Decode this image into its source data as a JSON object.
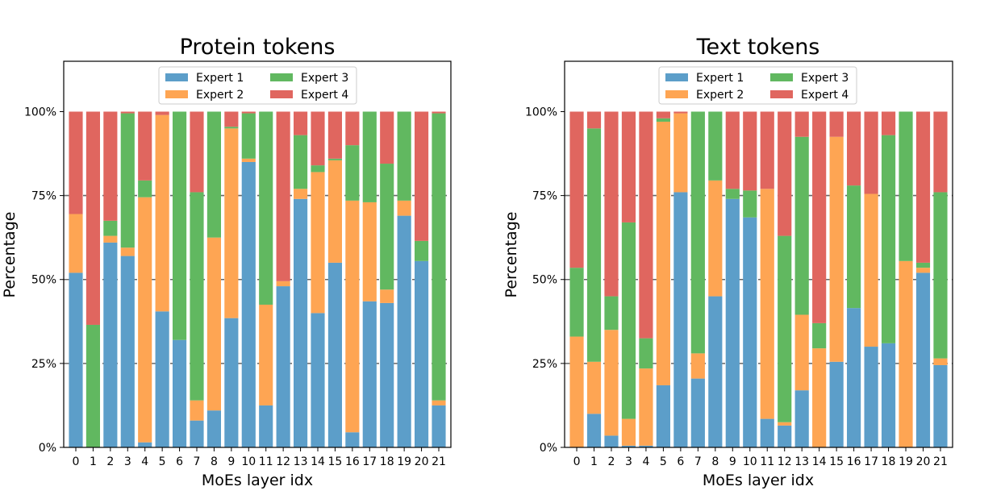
{
  "colors": {
    "expert1": "#5c9ec9",
    "expert2": "#fea553",
    "expert3": "#61b860",
    "expert4": "#e0665f"
  },
  "chart_data": [
    {
      "type": "bar",
      "stacked": true,
      "title": "Protein tokens",
      "xlabel": "MoEs layer idx",
      "ylabel": "Percentage",
      "ylim": [
        0,
        115
      ],
      "yticks": [
        "0%",
        "25%",
        "50%",
        "75%",
        "100%"
      ],
      "ytick_values": [
        0,
        25,
        50,
        75,
        100
      ],
      "gridlines": [
        25,
        50,
        75
      ],
      "legend_position": "upper-center",
      "categories": [
        "0",
        "1",
        "2",
        "3",
        "4",
        "5",
        "6",
        "7",
        "8",
        "9",
        "10",
        "11",
        "12",
        "13",
        "14",
        "15",
        "16",
        "17",
        "18",
        "19",
        "20",
        "21"
      ],
      "series": [
        {
          "name": "Expert 1",
          "values": [
            52,
            0,
            61,
            57,
            1.5,
            40.5,
            32,
            8,
            11,
            38.5,
            85,
            12.5,
            48,
            74,
            40,
            55,
            4.5,
            43.5,
            43,
            69,
            55.5,
            12.5
          ]
        },
        {
          "name": "Expert 2",
          "values": [
            17.5,
            0,
            2,
            2.5,
            73,
            58.5,
            0,
            6,
            51.5,
            56.5,
            1,
            30,
            1.5,
            3,
            42,
            30.5,
            69,
            29.5,
            4,
            4.5,
            0,
            1.5
          ]
        },
        {
          "name": "Expert 3",
          "values": [
            0,
            36.5,
            4.5,
            40,
            5,
            0,
            68,
            62,
            37.5,
            0.5,
            13.5,
            57.5,
            0,
            16,
            2,
            0.5,
            16.5,
            27,
            37.5,
            26.5,
            6,
            85.5
          ]
        },
        {
          "name": "Expert 4",
          "values": [
            30.5,
            63.5,
            32.5,
            0.5,
            20.5,
            1,
            0,
            24,
            0,
            4.5,
            0.5,
            0,
            50.5,
            7,
            16,
            14,
            10,
            0,
            15.5,
            0,
            38.5,
            0.5
          ]
        }
      ]
    },
    {
      "type": "bar",
      "stacked": true,
      "title": "Text tokens",
      "xlabel": "MoEs layer idx",
      "ylabel": "Percentage",
      "ylim": [
        0,
        115
      ],
      "yticks": [
        "0%",
        "25%",
        "50%",
        "75%",
        "100%"
      ],
      "ytick_values": [
        0,
        25,
        50,
        75,
        100
      ],
      "gridlines": [
        25,
        50,
        75
      ],
      "legend_position": "upper-center",
      "categories": [
        "0",
        "1",
        "2",
        "3",
        "4",
        "5",
        "6",
        "7",
        "8",
        "9",
        "10",
        "11",
        "12",
        "13",
        "14",
        "15",
        "16",
        "17",
        "18",
        "19",
        "20",
        "21"
      ],
      "series": [
        {
          "name": "Expert 1",
          "values": [
            0,
            10,
            3.5,
            0.5,
            0.5,
            18.5,
            76,
            20.5,
            45,
            74,
            68.5,
            8.5,
            6.5,
            17,
            0,
            25.5,
            41.5,
            30,
            31,
            0,
            52,
            24.5
          ]
        },
        {
          "name": "Expert 2",
          "values": [
            33,
            15.5,
            31.5,
            8,
            23,
            78.5,
            23.5,
            7.5,
            34.5,
            0,
            0,
            68.5,
            1,
            22.5,
            29.5,
            67,
            0,
            45.5,
            0,
            55.5,
            1.5,
            2
          ]
        },
        {
          "name": "Expert 3",
          "values": [
            20.5,
            69.5,
            10,
            58.5,
            9,
            1,
            0,
            72,
            20.5,
            3,
            8,
            0,
            55.5,
            53,
            7.5,
            0,
            36.5,
            0,
            62,
            44.5,
            1.5,
            49.5
          ]
        },
        {
          "name": "Expert 4",
          "values": [
            46.5,
            5,
            55,
            33,
            67.5,
            2,
            0.5,
            0,
            0,
            23,
            23.5,
            23,
            37,
            7.5,
            63,
            7.5,
            22,
            24.5,
            7,
            0,
            45,
            24
          ]
        }
      ]
    }
  ]
}
